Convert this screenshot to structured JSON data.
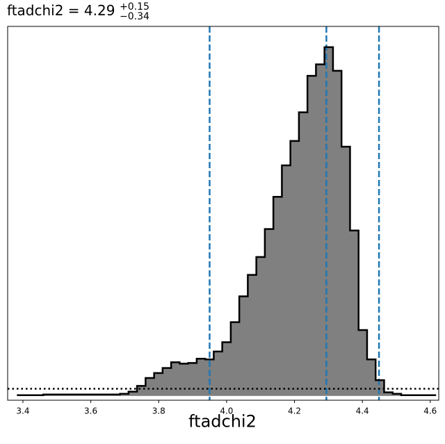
{
  "chart_data": {
    "type": "histogram",
    "title": {
      "parameter": "ftadchi2",
      "median": "4.29",
      "upper_error": "+0.15",
      "lower_error": "−0.34"
    },
    "xlabel": "ftadchi2",
    "ylabel": "",
    "xlim": [
      3.355,
      4.625
    ],
    "ylim": [
      -0.6,
      51.6
    ],
    "y_ticks_shown": false,
    "grid": false,
    "x_ticks": [
      3.4,
      3.6,
      3.8,
      4.0,
      4.2,
      4.4,
      4.6
    ],
    "x_tick_labels": [
      "3.4",
      "3.6",
      "3.8",
      "4.0",
      "4.2",
      "4.4",
      "4.6"
    ],
    "bin_edges": [
      3.3848,
      3.4099,
      3.435,
      3.4601,
      3.4852,
      3.5103,
      3.5354,
      3.5605,
      3.5856,
      3.6107,
      3.6358,
      3.6609,
      3.686,
      3.7111,
      3.7362,
      3.7613,
      3.7864,
      3.8115,
      3.8366,
      3.8617,
      3.8868,
      3.9119,
      3.937,
      3.9621,
      3.9872,
      4.0123,
      4.0374,
      4.0625,
      4.0876,
      4.1127,
      4.1378,
      4.1629,
      4.188,
      4.2131,
      4.2382,
      4.2633,
      4.2884,
      4.3135,
      4.3386,
      4.3637,
      4.3888,
      4.4139,
      4.439,
      4.4641,
      4.4892,
      4.5143,
      4.5394,
      4.5645,
      4.5896,
      4.6147
    ],
    "counts": [
      0.1,
      0.1,
      0.1,
      0.2,
      0.2,
      0.2,
      0.2,
      0.2,
      0.2,
      0.2,
      0.2,
      0.2,
      0.3,
      0.6,
      1.4,
      2.5,
      3.2,
      3.9,
      4.7,
      4.5,
      4.6,
      5.2,
      5.1,
      6.2,
      7.5,
      10.3,
      13.9,
      16.9,
      19.4,
      23.3,
      27.8,
      32.2,
      35.6,
      39.6,
      44.7,
      46.3,
      48.7,
      45.4,
      34.8,
      23.1,
      9.2,
      5.1,
      2.2,
      0.5,
      0.3,
      0.1,
      0.1,
      0.1,
      0.1
    ],
    "fill_color": "#808080",
    "edge_color": "#000000",
    "reference_lines": [
      {
        "x": 3.95,
        "style": "dashed",
        "color": "#1f77b4"
      },
      {
        "x": 4.294,
        "style": "dashed",
        "color": "#1f77b4"
      },
      {
        "x": 4.449,
        "style": "dashed",
        "color": "#1f77b4"
      }
    ],
    "baseline": {
      "y": 1.0,
      "style": "dotted",
      "color": "#000000"
    }
  }
}
